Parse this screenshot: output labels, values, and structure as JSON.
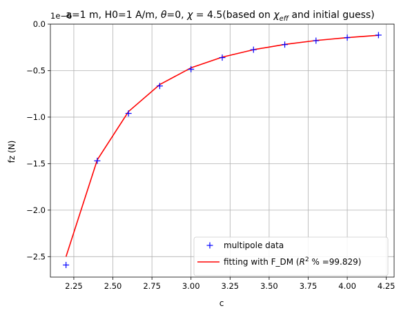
{
  "chart_data": {
    "type": "line",
    "title": {
      "prefix": "a=1 m, H0=1 A/m, ",
      "theta_symbol": "θ",
      "theta_rest": "=0, ",
      "chi_symbol": "χ",
      "chi_rest": " = 4.5(based on ",
      "chi_eff_symbol": "χ",
      "chi_eff_sub": "eff",
      "suffix": " and initial guess)"
    },
    "xlabel": "c",
    "ylabel": "fz (N)",
    "offset_text": "1e−6",
    "xlim": [
      2.1,
      4.3
    ],
    "ylim": [
      -2.72,
      0.0
    ],
    "xticks": [
      "2.25",
      "2.50",
      "2.75",
      "3.00",
      "3.25",
      "3.50",
      "3.75",
      "4.00",
      "4.25"
    ],
    "yticks": [
      "0.0",
      "−0.5",
      "−1.0",
      "−1.5",
      "−2.0",
      "−2.5"
    ],
    "grid": true,
    "legend_position": "lower-right",
    "series": [
      {
        "name": "multipole data",
        "style": "markers",
        "marker": "+",
        "color": "#0000ff",
        "x": [
          2.2,
          2.4,
          2.6,
          2.8,
          3.0,
          3.2,
          3.4,
          3.6,
          3.8,
          4.0,
          4.2
        ],
        "y": [
          -2.59,
          -1.47,
          -0.96,
          -0.665,
          -0.485,
          -0.36,
          -0.275,
          -0.22,
          -0.178,
          -0.145,
          -0.118
        ]
      },
      {
        "name_prefix": "fitting with F_DM (",
        "name_r": "R",
        "name_sup": "2",
        "name_suffix": " % =99.829)",
        "style": "line",
        "color": "#ff0000",
        "x": [
          2.2,
          2.4,
          2.6,
          2.8,
          3.0,
          3.2,
          3.4,
          3.6,
          3.8,
          4.0,
          4.2
        ],
        "y": [
          -2.5,
          -1.46,
          -0.94,
          -0.65,
          -0.47,
          -0.355,
          -0.275,
          -0.218,
          -0.176,
          -0.145,
          -0.12
        ]
      }
    ]
  }
}
